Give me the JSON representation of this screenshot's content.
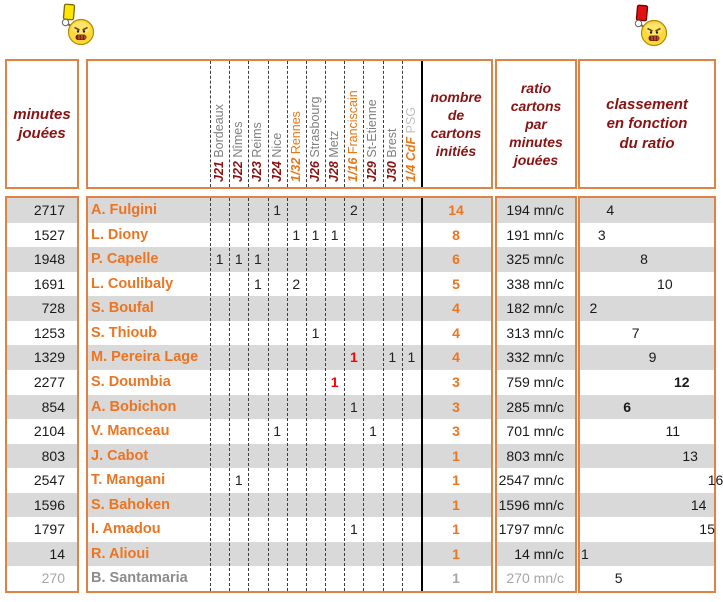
{
  "icons": {
    "left": "angry-referee-holding-yellow-card",
    "right": "angry-referee-holding-red-card"
  },
  "colors": {
    "accent_orange": "#ED7420",
    "header_dark_red": "#8B1212",
    "table_border_orange": "#DF8244",
    "row_stripe_gray": "#D9D9D9",
    "red_card_value": "#FF0000",
    "league_team_gray": "#7F7F7F",
    "psg_light_gray": "#BFBFBF",
    "muted_gray": "#A6A6A6"
  },
  "header": {
    "minutes": "minutes\njouées",
    "cards_count": "nombre\nde\ncartons\ninitiés",
    "ratio": "ratio\ncartons\npar\nminutes\njouées",
    "ranking": "classement\nen fonction\ndu ratio",
    "matches": [
      {
        "round": "J21",
        "team": "Bordeaux",
        "type": "league"
      },
      {
        "round": "J22",
        "team": "Nîmes",
        "type": "league"
      },
      {
        "round": "J23",
        "team": "Reims",
        "type": "league"
      },
      {
        "round": "J24",
        "team": "Nice",
        "type": "league"
      },
      {
        "round": "1/32",
        "team": "Rennes",
        "type": "cup"
      },
      {
        "round": "J26",
        "team": "Strasbourg",
        "type": "league"
      },
      {
        "round": "J28",
        "team": "Metz",
        "type": "league"
      },
      {
        "round": "1/16",
        "team": "Franciscain",
        "type": "cup"
      },
      {
        "round": "J29",
        "team": "St-Etienne",
        "type": "league"
      },
      {
        "round": "J30",
        "team": "Brest",
        "type": "league"
      },
      {
        "round": "1/4 CdF",
        "team": "PSG",
        "type": "cup_psg"
      }
    ]
  },
  "players": [
    {
      "minutes": "2717",
      "name": "A. Fulgini",
      "cards": [
        null,
        null,
        null,
        "1",
        null,
        null,
        null,
        "2",
        null,
        null,
        null
      ],
      "cards_total": "14",
      "ratio": "194 mn/c",
      "rank": "4",
      "rank_bold": false,
      "muted": false
    },
    {
      "minutes": "1527",
      "name": "L. Diony",
      "cards": [
        null,
        null,
        null,
        null,
        "1",
        "1",
        "1",
        null,
        null,
        null,
        null
      ],
      "cards_total": "8",
      "ratio": "191 mn/c",
      "rank": "3",
      "rank_bold": false,
      "muted": false
    },
    {
      "minutes": "1948",
      "name": "P. Capelle",
      "cards": [
        "1",
        "1",
        "1",
        null,
        null,
        null,
        null,
        null,
        null,
        null,
        null
      ],
      "cards_total": "6",
      "ratio": "325 mn/c",
      "rank": "8",
      "rank_bold": false,
      "muted": false
    },
    {
      "minutes": "1691",
      "name": "L. Coulibaly",
      "cards": [
        null,
        null,
        "1",
        null,
        "2",
        null,
        null,
        null,
        null,
        null,
        null
      ],
      "cards_total": "5",
      "ratio": "338 mn/c",
      "rank": "10",
      "rank_bold": false,
      "muted": false
    },
    {
      "minutes": "728",
      "name": "S. Boufal",
      "cards": [
        null,
        null,
        null,
        null,
        null,
        null,
        null,
        null,
        null,
        null,
        null
      ],
      "cards_total": "4",
      "ratio": "182 mn/c",
      "rank": "2",
      "rank_bold": false,
      "muted": false
    },
    {
      "minutes": "1253",
      "name": "S. Thioub",
      "cards": [
        null,
        null,
        null,
        null,
        null,
        "1",
        null,
        null,
        null,
        null,
        null
      ],
      "cards_total": "4",
      "ratio": "313 mn/c",
      "rank": "7",
      "rank_bold": false,
      "muted": false
    },
    {
      "minutes": "1329",
      "name": "M. Pereira Lage",
      "cards": [
        null,
        null,
        null,
        null,
        null,
        null,
        null,
        "1R",
        null,
        "1",
        "1"
      ],
      "cards_total": "4",
      "ratio": "332 mn/c",
      "rank": "9",
      "rank_bold": false,
      "muted": false
    },
    {
      "minutes": "2277",
      "name": "S. Doumbia",
      "cards": [
        null,
        null,
        null,
        null,
        null,
        null,
        "1R",
        null,
        null,
        null,
        null
      ],
      "cards_total": "3",
      "ratio": "759 mn/c",
      "rank": "12",
      "rank_bold": true,
      "muted": false
    },
    {
      "minutes": "854",
      "name": "A. Bobichon",
      "cards": [
        null,
        null,
        null,
        null,
        null,
        null,
        null,
        "1",
        null,
        null,
        null
      ],
      "cards_total": "3",
      "ratio": "285 mn/c",
      "rank": "6",
      "rank_bold": true,
      "muted": false
    },
    {
      "minutes": "2104",
      "name": "V. Manceau",
      "cards": [
        null,
        null,
        null,
        "1",
        null,
        null,
        null,
        null,
        "1",
        null,
        null
      ],
      "cards_total": "3",
      "ratio": "701 mn/c",
      "rank": "11",
      "rank_bold": false,
      "muted": false
    },
    {
      "minutes": "803",
      "name": "J. Cabot",
      "cards": [
        null,
        null,
        null,
        null,
        null,
        null,
        null,
        null,
        null,
        null,
        null
      ],
      "cards_total": "1",
      "ratio": "803 mn/c",
      "rank": "13",
      "rank_bold": false,
      "muted": false
    },
    {
      "minutes": "2547",
      "name": "T. Mangani",
      "cards": [
        null,
        "1",
        null,
        null,
        null,
        null,
        null,
        null,
        null,
        null,
        null
      ],
      "cards_total": "1",
      "ratio": "2547 mn/c",
      "rank": "16",
      "rank_bold": false,
      "muted": false
    },
    {
      "minutes": "1596",
      "name": "S. Bahoken",
      "cards": [
        null,
        null,
        null,
        null,
        null,
        null,
        null,
        null,
        null,
        null,
        null
      ],
      "cards_total": "1",
      "ratio": "1596 mn/c",
      "rank": "14",
      "rank_bold": false,
      "muted": false
    },
    {
      "minutes": "1797",
      "name": "I. Amadou",
      "cards": [
        null,
        null,
        null,
        null,
        null,
        null,
        null,
        "1",
        null,
        null,
        null
      ],
      "cards_total": "1",
      "ratio": "1797 mn/c",
      "rank": "15",
      "rank_bold": false,
      "muted": false
    },
    {
      "minutes": "14",
      "name": "R. Alioui",
      "cards": [
        null,
        null,
        null,
        null,
        null,
        null,
        null,
        null,
        null,
        null,
        null
      ],
      "cards_total": "1",
      "ratio": "14 mn/c",
      "rank": "1",
      "rank_bold": false,
      "muted": false
    },
    {
      "minutes": "270",
      "name": "B. Santamaria",
      "cards": [
        null,
        null,
        null,
        null,
        null,
        null,
        null,
        null,
        null,
        null,
        null
      ],
      "cards_total": "1",
      "ratio": "270 mn/c",
      "rank": "5",
      "rank_bold": false,
      "muted": true
    }
  ]
}
